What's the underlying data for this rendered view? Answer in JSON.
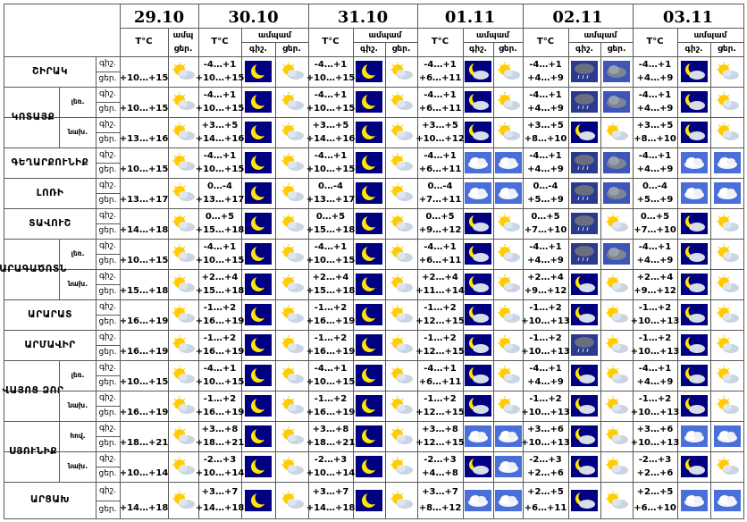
{
  "days": [
    {
      "date": "29.10",
      "temp_col": "T°C",
      "cloud_hdr": "ամպ",
      "day_lbl": "ցեր."
    },
    {
      "date": "30.10",
      "temp_col": "T°C",
      "cloud_hdr": "ամպամ",
      "night_lbl": "գիշ.",
      "day_lbl": "ցեր."
    },
    {
      "date": "31.10",
      "temp_col": "T°C",
      "cloud_hdr": "ամպամ",
      "night_lbl": "գիշ.",
      "day_lbl": "ցեր."
    },
    {
      "date": "01.11",
      "temp_col": "T°C",
      "cloud_hdr": "ամպամ",
      "night_lbl": "գիշ.",
      "day_lbl": "ցեր."
    },
    {
      "date": "02.11",
      "temp_col": "T°C",
      "cloud_hdr": "ամպամ",
      "night_lbl": "գիշ.",
      "day_lbl": "ցեր."
    },
    {
      "date": "03.11",
      "temp_col": "T°C",
      "cloud_hdr": "ամպամ",
      "night_lbl": "գիշ.",
      "day_lbl": "ցեր."
    }
  ],
  "time_labels": {
    "night": "գիշ.",
    "day": "ցեր."
  },
  "regions": [
    {
      "name": "ՇԻՐԱԿ",
      "subs": [
        {
          "label": "",
          "rows": [
            {
              "night": [
                "",
                "-4…+1",
                "-4…+1",
                "-4…+1",
                "-4…+1",
                "-4…+1"
              ],
              "day": [
                "+10…+15",
                "+10…+15",
                "+10…+15",
                "+6…+11",
                "+4…+9",
                "+4…+9"
              ]
            }
          ]
        }
      ]
    },
    {
      "name": "ԿՈՏԱՅՔ",
      "subs": [
        {
          "label": "լեռ.",
          "night": [
            "",
            "-4…+1",
            "-4…+1",
            "-4…+1",
            "-4…+1",
            "-4…+1"
          ],
          "day": [
            "+10…+15",
            "+10…+15",
            "+10…+15",
            "+6…+11",
            "+4…+9",
            "+4…+9"
          ]
        },
        {
          "label": "նախ.",
          "night": [
            "",
            "+3…+5",
            "+3…+5",
            "+3…+5",
            "+3…+5",
            "+3…+5"
          ],
          "day": [
            "+13…+16",
            "+14…+16",
            "+14…+16",
            "+10…+12",
            "+8…+10",
            "+8…+10"
          ]
        }
      ]
    },
    {
      "name": "ԳԵՂԱՐՔՈՒՆԻՔ",
      "subs": [
        {
          "label": "",
          "night": [
            "",
            "-4…+1",
            "-4…+1",
            "-4…+1",
            "-4…+1",
            "-4…+1"
          ],
          "day": [
            "+10…+15",
            "+10…+15",
            "+10…+15",
            "+6…+11",
            "+4…+9",
            "+4…+9"
          ]
        }
      ]
    },
    {
      "name": "ԼՈՌԻ",
      "subs": [
        {
          "label": "",
          "night": [
            "",
            "0…-4",
            "0…-4",
            "0…-4",
            "0…-4",
            "0…-4"
          ],
          "day": [
            "+13…+17",
            "+13…+17",
            "+13…+17",
            "+7…+11",
            "+5…+9",
            "+5…+9"
          ]
        }
      ]
    },
    {
      "name": "ՏԱՎՈՒՇ",
      "subs": [
        {
          "label": "",
          "night": [
            "",
            "0…+5",
            "0…+5",
            "0…+5",
            "0…+5",
            "0…+5"
          ],
          "day": [
            "+14…+18",
            "+15…+18",
            "+15…+18",
            "+9…+12",
            "+7…+10",
            "+7…+10"
          ]
        }
      ]
    },
    {
      "name": "ԱՐԱԳԱԾՈՏՆ",
      "subs": [
        {
          "label": "լեռ.",
          "night": [
            "",
            "-4…+1",
            "-4…+1",
            "-4…+1",
            "-4…+1",
            "-4…+1"
          ],
          "day": [
            "+10…+15",
            "+10…+15",
            "+10…+15",
            "+6…+11",
            "+4…+9",
            "+4…+9"
          ]
        },
        {
          "label": "նախ.",
          "night": [
            "",
            "+2…+4",
            "+2…+4",
            "+2…+4",
            "+2…+4",
            "+2…+4"
          ],
          "day": [
            "+15…+18",
            "+15…+18",
            "+15…+18",
            "+11…+14",
            "+9…+12",
            "+9…+12"
          ]
        }
      ]
    },
    {
      "name": "ԱՐԱՐԱՏ",
      "subs": [
        {
          "label": "",
          "night": [
            "",
            "-1…+2",
            "-1…+2",
            "-1…+2",
            "-1…+2",
            "-1…+2"
          ],
          "day": [
            "+16…+19",
            "+16…+19",
            "+16…+19",
            "+12…+15",
            "+10…+13",
            "+10…+13"
          ]
        }
      ]
    },
    {
      "name": "ԱՐՄԱՎԻՐ",
      "subs": [
        {
          "label": "",
          "night": [
            "",
            "-1…+2",
            "-1…+2",
            "-1…+2",
            "-1…+2",
            "-1…+2"
          ],
          "day": [
            "+16…+19",
            "+16…+19",
            "+16…+19",
            "+12…+15",
            "+10…+13",
            "+10…+13"
          ]
        }
      ]
    },
    {
      "name": "ՎԱՅՈՑ ՁՈՐ",
      "subs": [
        {
          "label": "լեռ.",
          "night": [
            "",
            "-4…+1",
            "-4…+1",
            "-4…+1",
            "-4…+1",
            "-4…+1"
          ],
          "day": [
            "+10…+15",
            "+10…+15",
            "+10…+15",
            "+6…+11",
            "+4…+9",
            "+4…+9"
          ]
        },
        {
          "label": "նախ.",
          "night": [
            "",
            "-1…+2",
            "-1…+2",
            "-1…+2",
            "-1…+2",
            "-1…+2"
          ],
          "day": [
            "+16…+19",
            "+16…+19",
            "+16…+19",
            "+12…+15",
            "+10…+13",
            "+10…+13"
          ]
        }
      ]
    },
    {
      "name": "ՍՅՈՒՆԻՔ",
      "subs": [
        {
          "label": "հով.",
          "night": [
            "",
            "+3…+8",
            "+3…+8",
            "+3…+8",
            "+3…+6",
            "+3…+6"
          ],
          "day": [
            "+18…+21",
            "+18…+21",
            "+18…+21",
            "+12…+15",
            "+10…+13",
            "+10…+13"
          ]
        },
        {
          "label": "նախ.",
          "night": [
            "",
            "-2…+3",
            "-2…+3",
            "-2…+3",
            "-2…+3",
            "-2…+3"
          ],
          "day": [
            "+10…+14",
            "+10…+14",
            "+10…+14",
            "+4…+8",
            "+2…+6",
            "+2…+6"
          ]
        }
      ]
    },
    {
      "name": "ԱՐՑԱԽ",
      "subs": [
        {
          "label": "",
          "night": [
            "",
            "+3…+7",
            "+3…+7",
            "+3…+7",
            "+2…+5",
            "+2…+5"
          ],
          "day": [
            "+14…+18",
            "+14…+18",
            "+14…+18",
            "+8…+12",
            "+6…+11",
            "+6…+10"
          ]
        }
      ]
    }
  ],
  "icons": {
    "col0_day": "sun-cloud-icon",
    "night": "moon-icon",
    "cloudy": "cloud-icon",
    "moon_cloud": "moon-cloud-icon",
    "rain_night": "rain-cloud-night-icon",
    "dark_cloud": "dark-cloud-icon"
  },
  "colors": {
    "night_bg": "#000080",
    "moon": "#ffd700",
    "grid": "#5a5a5a"
  }
}
